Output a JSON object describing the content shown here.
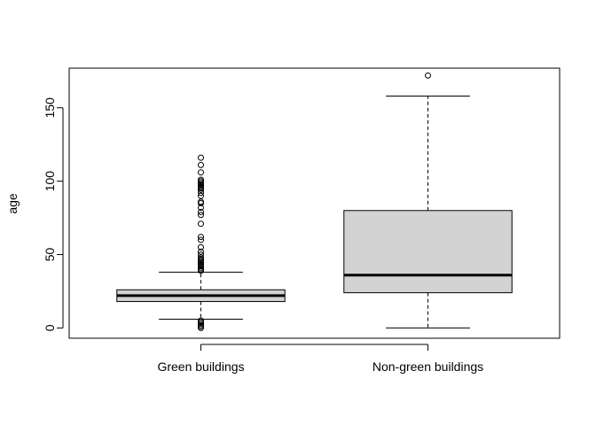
{
  "chart_data": {
    "type": "boxplot",
    "title": "",
    "xlabel": "",
    "ylabel": "age",
    "ylim": [
      -7,
      177
    ],
    "y_ticks": [
      0,
      50,
      100,
      150
    ],
    "grid": false,
    "box_fill": "#d3d3d3",
    "line_color": "#000000",
    "categories": [
      "Green buildings",
      "Non-green buildings"
    ],
    "boxes": [
      {
        "name": "Green buildings",
        "whisker_low": 6,
        "q1": 18,
        "median": 22,
        "q3": 26,
        "whisker_high": 38,
        "outliers": [
          0,
          1,
          2,
          3,
          4,
          5,
          39,
          40,
          41,
          42,
          43,
          44,
          45,
          46,
          47,
          48,
          50,
          52,
          55,
          60,
          62,
          71,
          77,
          79,
          82,
          85,
          86,
          90,
          92,
          94,
          95,
          96,
          97,
          98,
          99,
          100,
          101,
          106,
          111,
          116
        ]
      },
      {
        "name": "Non-green buildings",
        "whisker_low": 0,
        "q1": 24,
        "median": 36,
        "q3": 80,
        "whisker_high": 158,
        "outliers": [
          172
        ]
      }
    ]
  }
}
